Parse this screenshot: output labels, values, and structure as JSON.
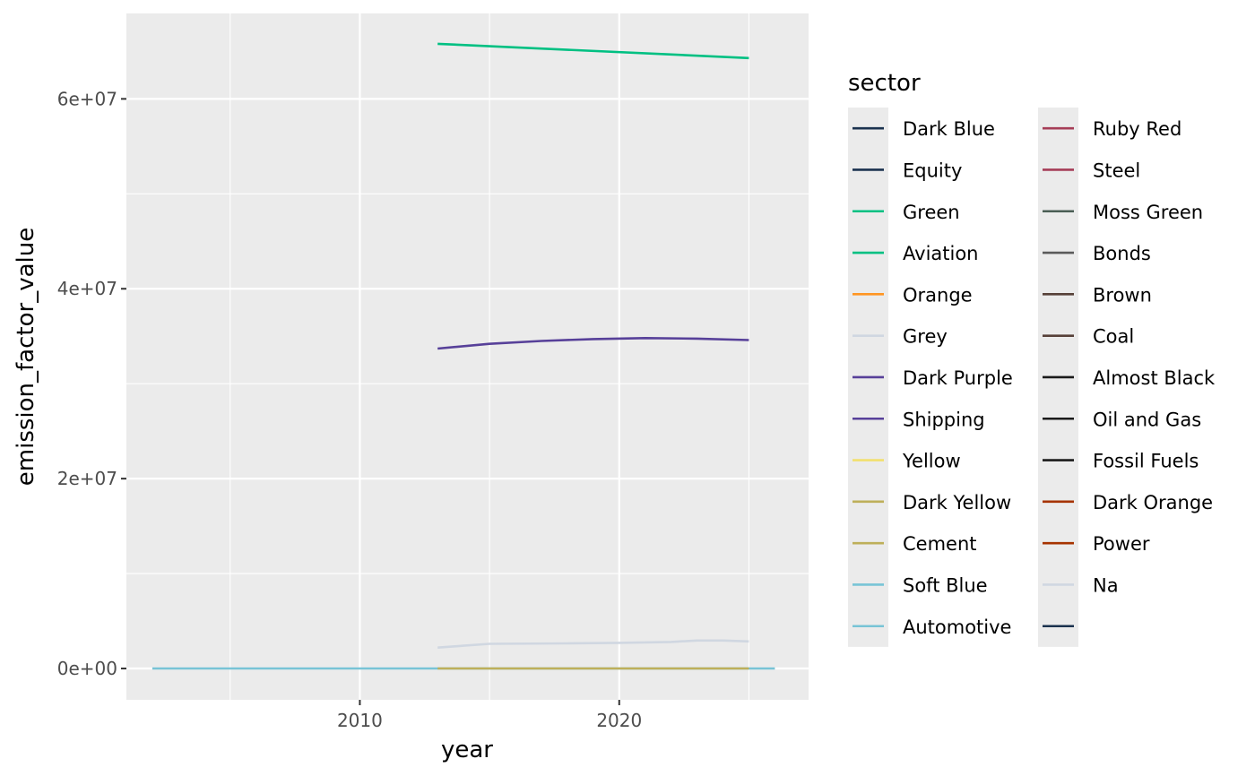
{
  "chart_data": {
    "type": "line",
    "xlabel": "year",
    "ylabel": "emission_factor_value",
    "xlim": [
      2001,
      2027.3
    ],
    "ylim": [
      -3300000,
      69000000
    ],
    "x_ticks": [
      2010,
      2020
    ],
    "x_tick_labels": [
      "2010",
      "2020"
    ],
    "x_minor_ticks": [
      2005,
      2015,
      2025
    ],
    "y_ticks": [
      0,
      20000000,
      40000000,
      60000000
    ],
    "y_tick_labels": [
      "0e+00",
      "2e+07",
      "4e+07",
      "6e+07"
    ],
    "y_minor_ticks": [
      10000000,
      30000000,
      50000000
    ],
    "panel_background": "#ebebeb",
    "grid": true,
    "legend": {
      "title": "sector",
      "placement": "right",
      "columns": 2,
      "entries": [
        {
          "name": "Dark Blue",
          "color": "#1b324f"
        },
        {
          "name": "Equity",
          "color": "#1b324f"
        },
        {
          "name": "Green",
          "color": "#00c082"
        },
        {
          "name": "Aviation",
          "color": "#00c082"
        },
        {
          "name": "Orange",
          "color": "#ff9623"
        },
        {
          "name": "Grey",
          "color": "#d0d7e1"
        },
        {
          "name": "Dark Purple",
          "color": "#574099"
        },
        {
          "name": "Shipping",
          "color": "#574099"
        },
        {
          "name": "Yellow",
          "color": "#f2e06e"
        },
        {
          "name": "Dark Yellow",
          "color": "#beaf5a"
        },
        {
          "name": "Cement",
          "color": "#beaf5a"
        },
        {
          "name": "Soft Blue",
          "color": "#78c4d6"
        },
        {
          "name": "Automotive",
          "color": "#78c4d6"
        },
        {
          "name": "Ruby Red",
          "color": "#a63d57"
        },
        {
          "name": "Steel",
          "color": "#a63d57"
        },
        {
          "name": "Moss Green",
          "color": "#4a5e54"
        },
        {
          "name": "Bonds",
          "color": "#5a5a5a"
        },
        {
          "name": "Brown",
          "color": "#574139"
        },
        {
          "name": "Coal",
          "color": "#574139"
        },
        {
          "name": "Almost Black",
          "color": "#1a1a1a"
        },
        {
          "name": "Oil and Gas",
          "color": "#1a1a1a"
        },
        {
          "name": "Fossil Fuels",
          "color": "#1a1a1a"
        },
        {
          "name": "Dark Orange",
          "color": "#a63300"
        },
        {
          "name": "Power",
          "color": "#a63300"
        },
        {
          "name": "Na",
          "color": "#d0d7e1"
        },
        {
          "name": "",
          "color": "#1b324f"
        }
      ]
    },
    "series": [
      {
        "name": "Aviation",
        "color": "#00c082",
        "x": [
          2013,
          2025
        ],
        "values": [
          65800000,
          64300000
        ]
      },
      {
        "name": "Shipping",
        "color": "#574099",
        "x": [
          2013,
          2015,
          2017,
          2019,
          2021,
          2023,
          2025
        ],
        "values": [
          33700000,
          34200000,
          34500000,
          34700000,
          34800000,
          34750000,
          34600000
        ]
      },
      {
        "name": "Grey",
        "color": "#d0d7e1",
        "x": [
          2013,
          2014,
          2015,
          2018,
          2020,
          2022,
          2023,
          2024,
          2025
        ],
        "values": [
          2200000,
          2400000,
          2600000,
          2650000,
          2700000,
          2800000,
          2950000,
          2950000,
          2850000
        ]
      },
      {
        "name": "Automotive",
        "color": "#78c4d6",
        "x": [
          2002,
          2026
        ],
        "values": [
          0,
          0
        ]
      },
      {
        "name": "Cement",
        "color": "#beaf5a",
        "x": [
          2013,
          2025
        ],
        "values": [
          0,
          0
        ]
      }
    ]
  }
}
